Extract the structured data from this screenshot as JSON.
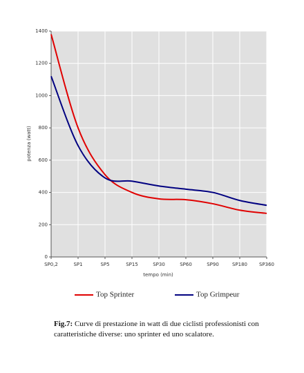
{
  "chart_data": {
    "type": "line",
    "x_label": "tempo (min)",
    "y_label": "potenza (watt)",
    "categories": [
      "SP0,2",
      "SP1",
      "SP5",
      "SP15",
      "SP30",
      "SP60",
      "SP90",
      "SP180",
      "SP360"
    ],
    "series": [
      {
        "name": "Top Sprinter",
        "color": "#e00000",
        "values": [
          1380,
          800,
          510,
          400,
          360,
          355,
          330,
          290,
          270
        ]
      },
      {
        "name": "Top Grimpeur",
        "color": "#000080",
        "values": [
          1120,
          690,
          490,
          470,
          440,
          420,
          400,
          350,
          320
        ]
      }
    ],
    "ylim": [
      0,
      1400
    ],
    "yticks": [
      0,
      200,
      400,
      600,
      800,
      1000,
      1200,
      1400
    ],
    "grid": true
  },
  "caption": {
    "label": "Fig.7:",
    "text": "Curve di prestazione in watt di due ciclisti professionisti con caratteristiche diverse: uno sprinter ed uno scalatore."
  }
}
